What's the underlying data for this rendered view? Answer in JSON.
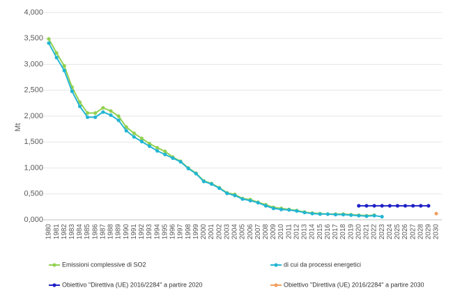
{
  "chart_data": {
    "type": "line",
    "y_label": "Mt",
    "categories": [
      "1980",
      "1981",
      "1982",
      "1983",
      "1984",
      "1985",
      "1986",
      "1987",
      "1988",
      "1989",
      "1990",
      "1991",
      "1992",
      "1993",
      "1994",
      "1995",
      "1996",
      "1997",
      "1998",
      "1999",
      "2000",
      "2001",
      "2002",
      "2003",
      "2004",
      "2005",
      "2006",
      "2007",
      "2008",
      "2009",
      "2010",
      "2011",
      "2012",
      "2013",
      "2014",
      "2015",
      "2016",
      "2017",
      "2018",
      "2019",
      "2020",
      "2021",
      "2022",
      "2023",
      "2024",
      "2025",
      "2026",
      "2027",
      "2028",
      "2029",
      "2030"
    ],
    "series": [
      {
        "name": "Emissioni complessive di SO2",
        "color": "#92d050",
        "values": [
          3.49,
          3.22,
          2.97,
          2.56,
          2.27,
          2.06,
          2.06,
          2.16,
          2.1,
          2.0,
          1.79,
          1.67,
          1.57,
          1.47,
          1.39,
          1.32,
          1.21,
          1.13,
          1.0,
          0.9,
          0.75,
          0.7,
          0.62,
          0.52,
          0.49,
          0.41,
          0.39,
          0.34,
          0.29,
          0.24,
          0.22,
          0.2,
          0.18,
          0.15,
          0.13,
          0.12,
          0.11,
          0.11,
          0.11,
          0.1,
          0.09,
          0.08,
          0.09,
          null,
          null,
          null,
          null,
          null,
          null,
          null,
          null
        ]
      },
      {
        "name": "di cui da processi energetici",
        "color": "#23b5d3",
        "values": [
          3.41,
          3.13,
          2.88,
          2.48,
          2.19,
          1.98,
          1.98,
          2.08,
          2.02,
          1.92,
          1.72,
          1.6,
          1.51,
          1.42,
          1.33,
          1.26,
          1.19,
          1.12,
          0.99,
          0.89,
          0.74,
          0.69,
          0.61,
          0.51,
          0.47,
          0.4,
          0.37,
          0.33,
          0.27,
          0.22,
          0.2,
          0.19,
          0.17,
          0.14,
          0.12,
          0.11,
          0.11,
          0.1,
          0.1,
          0.09,
          0.08,
          0.07,
          0.08,
          0.06,
          null,
          null,
          null,
          null,
          null,
          null,
          null
        ]
      },
      {
        "name": "Obiettivo \"Direttiva (UE) 2016/2284\" a partire 2020",
        "color": "#1f1fc8",
        "values": [
          null,
          null,
          null,
          null,
          null,
          null,
          null,
          null,
          null,
          null,
          null,
          null,
          null,
          null,
          null,
          null,
          null,
          null,
          null,
          null,
          null,
          null,
          null,
          null,
          null,
          null,
          null,
          null,
          null,
          null,
          null,
          null,
          null,
          null,
          null,
          null,
          null,
          null,
          null,
          null,
          0.27,
          0.27,
          0.27,
          0.27,
          0.27,
          0.27,
          0.27,
          0.27,
          0.27,
          0.27,
          null
        ]
      },
      {
        "name": "Obiettivo \"Direttiva (UE) 2016/2284\" a partire 2030",
        "color": "#f0a060",
        "values": [
          null,
          null,
          null,
          null,
          null,
          null,
          null,
          null,
          null,
          null,
          null,
          null,
          null,
          null,
          null,
          null,
          null,
          null,
          null,
          null,
          null,
          null,
          null,
          null,
          null,
          null,
          null,
          null,
          null,
          null,
          null,
          null,
          null,
          null,
          null,
          null,
          null,
          null,
          null,
          null,
          null,
          null,
          null,
          null,
          null,
          null,
          null,
          null,
          null,
          null,
          0.12
        ]
      }
    ],
    "ylim": [
      0,
      4
    ],
    "yticks": [
      {
        "value": 0,
        "label": "0,000"
      },
      {
        "value": 0.5,
        "label": "0,500"
      },
      {
        "value": 1,
        "label": "1,000"
      },
      {
        "value": 1.5,
        "label": "1,500"
      },
      {
        "value": 2,
        "label": "2,000"
      },
      {
        "value": 2.5,
        "label": "2,500"
      },
      {
        "value": 3,
        "label": "3,000"
      },
      {
        "value": 3.5,
        "label": "3,500"
      },
      {
        "value": 4,
        "label": "4,000"
      }
    ],
    "grid": true
  }
}
